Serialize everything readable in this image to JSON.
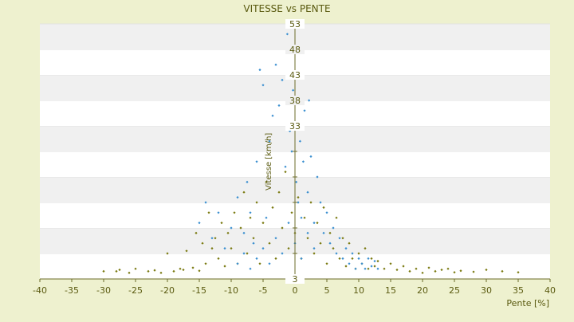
{
  "chart_data": {
    "type": "scatter",
    "title": "VITESSE vs PENTE",
    "xlabel": "Pente [%]",
    "ylabel": "Vitesse [km/h]",
    "xlim": [
      -40,
      40
    ],
    "ylim": [
      3,
      53
    ],
    "x_ticks": [
      -40,
      -35,
      -30,
      -25,
      -20,
      -15,
      -10,
      -5,
      0,
      5,
      10,
      15,
      20,
      25,
      30,
      35,
      40
    ],
    "y_ticks": [
      3,
      8,
      13,
      18,
      23,
      28,
      33,
      38,
      43,
      48,
      53
    ],
    "y_tick_labels_shown": [
      "3",
      "",
      "",
      "",
      "",
      "",
      "33",
      "38",
      "43",
      "48",
      "53"
    ],
    "grid": "horizontal alternating bands",
    "legend": "none",
    "series": [
      {
        "color": "#7a7a10",
        "marker": "small diamond",
        "points": [
          [
            -30,
            4.5
          ],
          [
            -28,
            4.5
          ],
          [
            -27.5,
            4.8
          ],
          [
            -26,
            4.2
          ],
          [
            -25,
            5
          ],
          [
            -23,
            4.5
          ],
          [
            -22,
            4.7
          ],
          [
            -21,
            4.2
          ],
          [
            -20,
            8
          ],
          [
            -19,
            4.5
          ],
          [
            -18,
            5
          ],
          [
            -17.5,
            4.8
          ],
          [
            -17,
            8.5
          ],
          [
            -16,
            5.2
          ],
          [
            -15.5,
            12
          ],
          [
            -15,
            4.6
          ],
          [
            -14.5,
            10
          ],
          [
            -14,
            6
          ],
          [
            -13.5,
            16
          ],
          [
            -13,
            9
          ],
          [
            -12.5,
            11
          ],
          [
            -12,
            7
          ],
          [
            -11.5,
            14
          ],
          [
            -11,
            5.5
          ],
          [
            -10.5,
            12
          ],
          [
            -10,
            9
          ],
          [
            -9.5,
            16
          ],
          [
            -9,
            6
          ],
          [
            -8.5,
            13
          ],
          [
            -8,
            20
          ],
          [
            -7.5,
            8
          ],
          [
            -7,
            15
          ],
          [
            -6.5,
            11
          ],
          [
            -6,
            18
          ],
          [
            -5.5,
            6
          ],
          [
            -5,
            14
          ],
          [
            -4.5,
            22
          ],
          [
            -4,
            10
          ],
          [
            -3.5,
            17
          ],
          [
            -3,
            7
          ],
          [
            -2.5,
            20
          ],
          [
            -2,
            13
          ],
          [
            -1.5,
            24
          ],
          [
            -1,
            9
          ],
          [
            -0.5,
            16
          ],
          [
            0,
            12
          ],
          [
            0.5,
            19
          ],
          [
            1,
            7
          ],
          [
            1.5,
            15
          ],
          [
            2,
            11
          ],
          [
            2.5,
            18
          ],
          [
            3,
            8
          ],
          [
            3.5,
            14
          ],
          [
            4,
            10
          ],
          [
            4.5,
            17
          ],
          [
            5,
            6
          ],
          [
            5.5,
            12
          ],
          [
            6,
            9
          ],
          [
            6.5,
            15
          ],
          [
            7,
            7
          ],
          [
            7.5,
            11
          ],
          [
            8,
            5.5
          ],
          [
            8.5,
            10
          ],
          [
            9,
            7
          ],
          [
            9.5,
            5
          ],
          [
            10,
            8
          ],
          [
            10.5,
            6
          ],
          [
            11,
            9
          ],
          [
            11.5,
            5
          ],
          [
            12,
            7
          ],
          [
            12.5,
            5.5
          ],
          [
            13,
            6.5
          ],
          [
            14,
            5
          ],
          [
            15,
            6
          ],
          [
            16,
            4.8
          ],
          [
            17,
            5.5
          ],
          [
            18,
            4.5
          ],
          [
            19,
            5
          ],
          [
            20,
            4.2
          ],
          [
            21,
            5.2
          ],
          [
            22,
            4.5
          ],
          [
            23,
            4.8
          ],
          [
            24,
            5
          ],
          [
            25,
            4.3
          ],
          [
            26,
            4.6
          ],
          [
            28,
            4.4
          ],
          [
            30,
            4.8
          ],
          [
            32.5,
            4.5
          ],
          [
            35,
            4.3
          ]
        ]
      },
      {
        "color": "#3a8fd0",
        "marker": "small diamond",
        "points": [
          [
            -15,
            14
          ],
          [
            -14,
            18
          ],
          [
            -13,
            11
          ],
          [
            -12,
            16
          ],
          [
            -11,
            9
          ],
          [
            -10,
            13
          ],
          [
            -9,
            19
          ],
          [
            -8,
            12
          ],
          [
            -7.5,
            22
          ],
          [
            -7,
            16
          ],
          [
            -6.5,
            10
          ],
          [
            -6,
            26
          ],
          [
            -5.5,
            44
          ],
          [
            -5,
            41
          ],
          [
            -4.5,
            15
          ],
          [
            -4,
            30
          ],
          [
            -3.5,
            35
          ],
          [
            -3,
            45
          ],
          [
            -2.5,
            37
          ],
          [
            -2,
            42
          ],
          [
            -1.5,
            25
          ],
          [
            -1.2,
            51
          ],
          [
            -1,
            48
          ],
          [
            -0.8,
            32
          ],
          [
            -0.5,
            28
          ],
          [
            -0.3,
            40
          ],
          [
            0,
            33
          ],
          [
            0.2,
            22
          ],
          [
            0.5,
            18
          ],
          [
            0.8,
            30
          ],
          [
            1,
            15
          ],
          [
            1.3,
            26
          ],
          [
            1.5,
            36
          ],
          [
            2,
            20
          ],
          [
            2.2,
            38
          ],
          [
            2.5,
            27
          ],
          [
            3,
            14
          ],
          [
            3.5,
            23
          ],
          [
            4,
            18
          ],
          [
            4.5,
            12
          ],
          [
            5,
            16
          ],
          [
            5.5,
            10
          ],
          [
            6,
            13
          ],
          [
            6.5,
            8
          ],
          [
            7,
            11
          ],
          [
            7.5,
            7
          ],
          [
            8,
            9
          ],
          [
            8.5,
            6
          ],
          [
            9,
            8
          ],
          [
            9.5,
            5
          ],
          [
            10,
            7
          ],
          [
            10.5,
            6
          ],
          [
            11,
            5
          ],
          [
            11.5,
            7
          ],
          [
            12,
            5.5
          ],
          [
            12.5,
            6.5
          ],
          [
            13,
            5
          ],
          [
            -9,
            6
          ],
          [
            -8,
            8
          ],
          [
            -7,
            5
          ],
          [
            -6,
            7
          ],
          [
            -5,
            9
          ],
          [
            -4,
            6
          ],
          [
            -3,
            11
          ],
          [
            -2,
            8
          ],
          [
            -1,
            14
          ],
          [
            0,
            10
          ],
          [
            1,
            7
          ],
          [
            2,
            12
          ],
          [
            3,
            9
          ]
        ]
      }
    ]
  }
}
